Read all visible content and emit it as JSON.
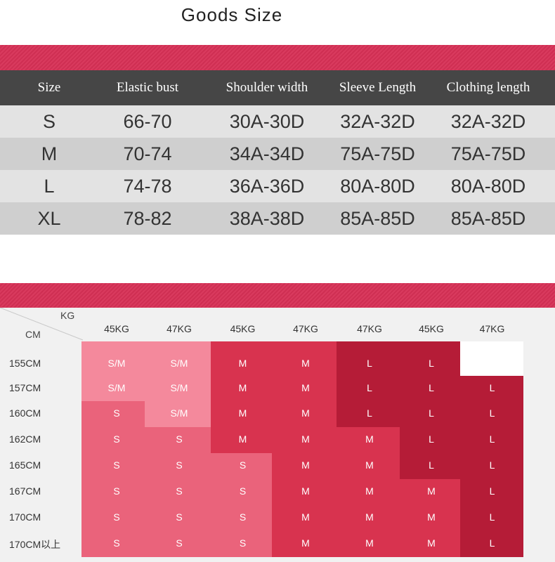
{
  "title": "Goods Size",
  "size_table": {
    "headers": [
      "Size",
      "Elastic bust",
      "Shoulder width",
      "Sleeve Length",
      "Clothing length"
    ],
    "rows": [
      [
        "S",
        "66-70",
        "30A-30D",
        "32A-32D",
        "32A-32D"
      ],
      [
        "M",
        "70-74",
        "34A-34D",
        "75A-75D",
        "75A-75D"
      ],
      [
        "L",
        "74-78",
        "36A-36D",
        "80A-80D",
        "80A-80D"
      ],
      [
        "XL",
        "78-82",
        "38A-38D",
        "85A-85D",
        "85A-85D"
      ]
    ]
  },
  "fit_chart": {
    "corner_kg": "KG",
    "corner_cm": "CM",
    "weights": [
      "45KG",
      "47KG",
      "45KG",
      "47KG",
      "47KG",
      "45KG",
      "47KG"
    ],
    "heights": [
      "155CM",
      "157CM",
      "160CM",
      "162CM",
      "165CM",
      "167CM",
      "170CM",
      "170CM以上"
    ],
    "grid": [
      [
        "S/M",
        "S/M",
        "M",
        "M",
        "L",
        "L",
        ""
      ],
      [
        "S/M",
        "S/M",
        "M",
        "M",
        "L",
        "L",
        "L"
      ],
      [
        "S",
        "S/M",
        "M",
        "M",
        "L",
        "L",
        "L"
      ],
      [
        "S",
        "S",
        "M",
        "M",
        "M",
        "L",
        "L"
      ],
      [
        "S",
        "S",
        "S",
        "M",
        "M",
        "L",
        "L"
      ],
      [
        "S",
        "S",
        "S",
        "M",
        "M",
        "M",
        "L"
      ],
      [
        "S",
        "S",
        "S",
        "M",
        "M",
        "M",
        "L"
      ],
      [
        "S",
        "S",
        "S",
        "M",
        "M",
        "M",
        "L"
      ]
    ],
    "colors": {
      "S/M": "#f4899c",
      "S": "#ea637b",
      "M": "#d8334f",
      "L": "#b51c37"
    },
    "colors_alt": {
      "S": "#ef7d90",
      "M": "#e24c66",
      "L": "#c42640"
    }
  }
}
